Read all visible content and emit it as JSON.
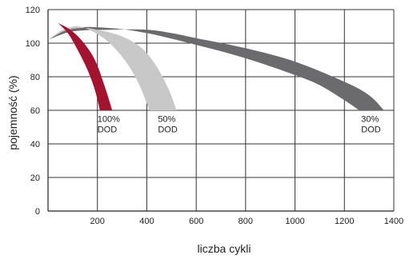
{
  "chart_data": {
    "type": "area",
    "xlabel": "liczba cykli",
    "ylabel": "pojemność (%)",
    "xlim": [
      0,
      1400
    ],
    "ylim": [
      0,
      120
    ],
    "x_ticks": [
      200,
      400,
      600,
      800,
      1000,
      1200,
      1400
    ],
    "x_tick_labels": [
      "200",
      "400",
      "600",
      "800",
      "1000",
      "1200",
      "1400"
    ],
    "y_ticks": [
      0,
      20,
      40,
      60,
      80,
      100,
      120
    ],
    "y_tick_labels": [
      "0",
      "20",
      "40",
      "60",
      "80",
      "100",
      "120"
    ],
    "grid": true,
    "series": [
      {
        "label_lines": [
          "30%",
          "DOD"
        ],
        "color": "#6b6b6e",
        "upper": [
          [
            0,
            102
          ],
          [
            100,
            107
          ],
          [
            250,
            108
          ],
          [
            400,
            108
          ],
          [
            500,
            106
          ],
          [
            600,
            103
          ],
          [
            800,
            97
          ],
          [
            1000,
            89
          ],
          [
            1200,
            77
          ],
          [
            1300,
            69
          ],
          [
            1360,
            60
          ]
        ],
        "lower": [
          [
            0,
            102
          ],
          [
            100,
            109
          ],
          [
            250,
            109
          ],
          [
            400,
            106
          ],
          [
            600,
            99
          ],
          [
            800,
            91
          ],
          [
            1000,
            81
          ],
          [
            1100,
            75
          ],
          [
            1200,
            66
          ],
          [
            1260,
            60
          ]
        ]
      },
      {
        "label_lines": [
          "50%",
          "DOD"
        ],
        "color": "#c8c8c8",
        "upper": [
          [
            0,
            102
          ],
          [
            60,
            107
          ],
          [
            130,
            109
          ],
          [
            200,
            108
          ],
          [
            300,
            104
          ],
          [
            380,
            97
          ],
          [
            440,
            86
          ],
          [
            490,
            72
          ],
          [
            520,
            60
          ]
        ],
        "lower": [
          [
            0,
            102
          ],
          [
            60,
            108
          ],
          [
            120,
            110
          ],
          [
            180,
            107
          ],
          [
            250,
            100
          ],
          [
            320,
            88
          ],
          [
            370,
            75
          ],
          [
            410,
            60
          ]
        ]
      },
      {
        "label_lines": [
          "100%",
          "DOD"
        ],
        "color": "#a3122e",
        "upper": [
          [
            40,
            112
          ],
          [
            90,
            108
          ],
          [
            140,
            101
          ],
          [
            190,
            90
          ],
          [
            230,
            74
          ],
          [
            260,
            60
          ]
        ],
        "lower": [
          [
            40,
            112
          ],
          [
            80,
            106
          ],
          [
            120,
            96
          ],
          [
            160,
            84
          ],
          [
            190,
            72
          ],
          [
            210,
            60
          ]
        ]
      }
    ],
    "annotations": [
      {
        "lines": [
          "100%",
          "DOD"
        ],
        "x": 200,
        "y": 57
      },
      {
        "lines": [
          "50%",
          "DOD"
        ],
        "x": 445,
        "y": 57
      },
      {
        "lines": [
          "30%",
          "DOD"
        ],
        "x": 1268,
        "y": 57
      }
    ]
  }
}
